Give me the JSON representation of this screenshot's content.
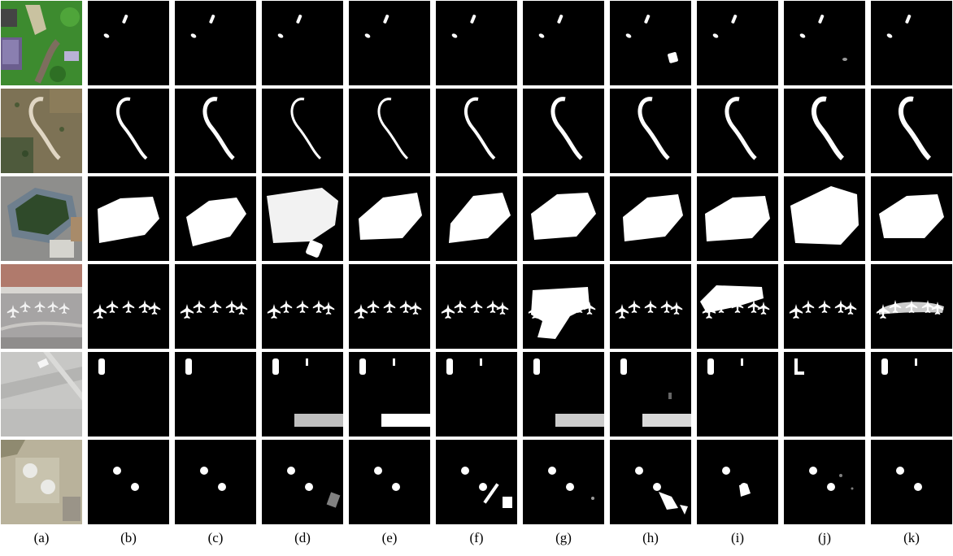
{
  "figure": {
    "columns": [
      {
        "label": "(a)",
        "content": "input-image"
      },
      {
        "label": "(b)",
        "content": "ground-truth-mask"
      },
      {
        "label": "(c)",
        "content": "predicted-mask"
      },
      {
        "label": "(d)",
        "content": "predicted-mask"
      },
      {
        "label": "(e)",
        "content": "predicted-mask"
      },
      {
        "label": "(f)",
        "content": "predicted-mask"
      },
      {
        "label": "(g)",
        "content": "predicted-mask"
      },
      {
        "label": "(h)",
        "content": "predicted-mask"
      },
      {
        "label": "(i)",
        "content": "predicted-mask"
      },
      {
        "label": "(j)",
        "content": "predicted-mask"
      },
      {
        "label": "(k)",
        "content": "predicted-mask"
      }
    ],
    "rows": [
      {
        "subject": "buildings"
      },
      {
        "subject": "road"
      },
      {
        "subject": "stadium"
      },
      {
        "subject": "airplanes"
      },
      {
        "subject": "vehicles"
      },
      {
        "subject": "storage-tanks"
      }
    ],
    "colors": {
      "mask_background": "#000000",
      "mask_foreground": "#ffffff",
      "page": "#ffffff"
    }
  }
}
